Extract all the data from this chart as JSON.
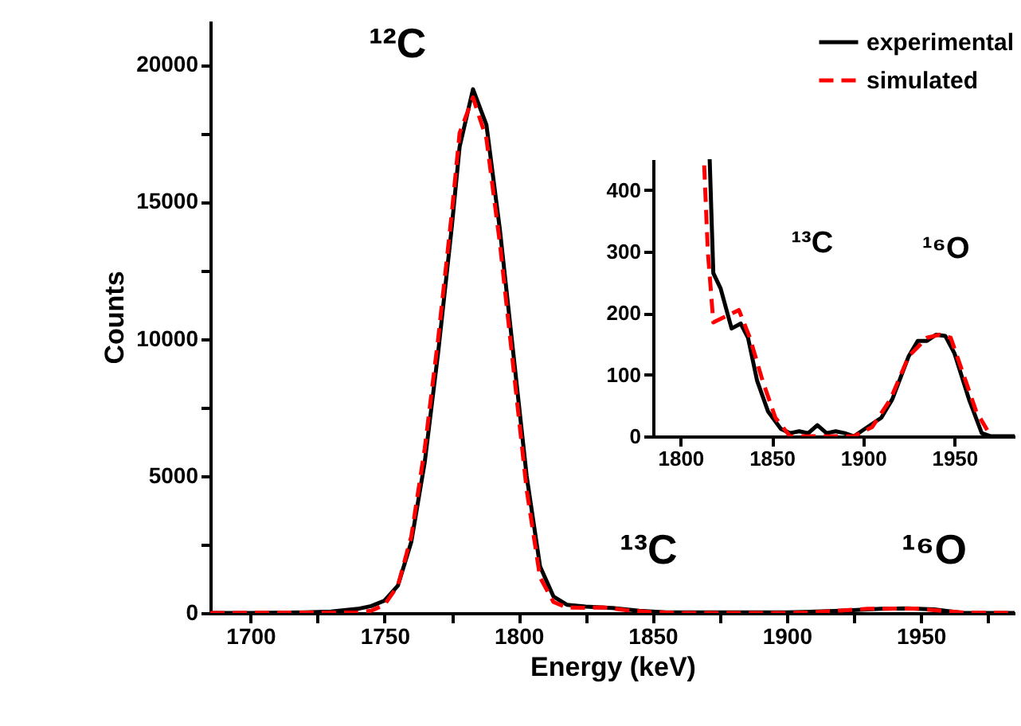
{
  "chart_data": [
    {
      "type": "line",
      "xlabel": "Energy (keV)",
      "ylabel": "Counts",
      "xlim": [
        1685,
        1985
      ],
      "ylim": [
        0,
        21600
      ],
      "xticks": [
        1700,
        {
          "value": 1725,
          "label": null
        },
        1750,
        {
          "value": 1775,
          "label": null
        },
        1800,
        {
          "value": 1825,
          "label": null
        },
        1850,
        {
          "value": 1875,
          "label": null
        },
        1900,
        {
          "value": 1925,
          "label": null
        },
        1950,
        {
          "value": 1975,
          "label": null
        }
      ],
      "yticks": [
        0,
        {
          "value": 2500,
          "label": null
        },
        5000,
        {
          "value": 7500,
          "label": null
        },
        10000,
        {
          "value": 12500,
          "label": null
        },
        15000,
        {
          "value": 17500,
          "label": null
        },
        20000
      ],
      "grid": false,
      "legend": "top right",
      "series": [
        {
          "name": "experimental",
          "color": "#000000",
          "line_style": "solid",
          "x": [
            1685,
            1700,
            1720,
            1730,
            1740,
            1745,
            1750,
            1755,
            1760,
            1765,
            1770,
            1775,
            1778,
            1783,
            1788,
            1793,
            1798,
            1803,
            1808,
            1813,
            1818,
            1825,
            1835,
            1845,
            1855,
            1875,
            1900,
            1920,
            1935,
            1945,
            1955,
            1965,
            1985
          ],
          "values": [
            0,
            0,
            20,
            50,
            150,
            250,
            450,
            1000,
            2600,
            5500,
            9500,
            14000,
            17000,
            19100,
            17800,
            14000,
            9500,
            5000,
            1700,
            600,
            300,
            230,
            180,
            80,
            20,
            20,
            20,
            80,
            150,
            170,
            130,
            10,
            0
          ]
        },
        {
          "name": "simulated",
          "color": "#ff0000",
          "line_style": "dashed",
          "x": [
            1685,
            1740,
            1745,
            1750,
            1755,
            1760,
            1765,
            1770,
            1775,
            1778,
            1783,
            1788,
            1793,
            1798,
            1803,
            1808,
            1813,
            1818,
            1825,
            1832,
            1840,
            1850,
            1860,
            1900,
            1910,
            1920,
            1930,
            1940,
            1948,
            1958,
            1967,
            1985
          ],
          "values": [
            0,
            20,
            80,
            300,
            1000,
            2800,
            6000,
            10000,
            14500,
            17500,
            18800,
            17300,
            13500,
            9000,
            4500,
            1300,
            400,
            200,
            190,
            200,
            100,
            30,
            0,
            0,
            20,
            90,
            150,
            160,
            160,
            80,
            10,
            0
          ]
        }
      ],
      "annotations": [
        "¹²C",
        "¹³C",
        "¹⁶O"
      ]
    },
    {
      "type": "line",
      "xlim": [
        1785,
        1983
      ],
      "ylim": [
        0,
        450
      ],
      "xticks": [
        1800,
        1850,
        1900,
        1950
      ],
      "yticks": [
        0,
        100,
        200,
        300,
        400
      ],
      "grid": false,
      "series": [
        {
          "color": "#000000",
          "line_style": "solid",
          "x": [
            1816,
            1818,
            1822,
            1828,
            1833,
            1837,
            1842,
            1848,
            1855,
            1860,
            1865,
            1870,
            1875,
            1880,
            1885,
            1890,
            1895,
            1900,
            1910,
            1916,
            1925,
            1930,
            1935,
            1940,
            1945,
            1950,
            1958,
            1965,
            1970,
            1983
          ],
          "values": [
            450,
            265,
            240,
            175,
            183,
            160,
            90,
            40,
            12,
            5,
            8,
            5,
            18,
            5,
            8,
            5,
            0,
            10,
            30,
            60,
            130,
            155,
            155,
            165,
            163,
            135,
            60,
            5,
            0,
            0
          ]
        },
        {
          "color": "#ff0000",
          "line_style": "dashed",
          "x": [
            1813,
            1815,
            1818,
            1825,
            1832,
            1838,
            1845,
            1852,
            1860,
            1895,
            1905,
            1915,
            1925,
            1935,
            1942,
            1948,
            1955,
            1962,
            1968
          ],
          "values": [
            440,
            300,
            185,
            195,
            205,
            160,
            90,
            30,
            0,
            0,
            15,
            60,
            130,
            160,
            165,
            160,
            100,
            40,
            10
          ]
        }
      ],
      "annotations": [
        "¹³C",
        "¹⁶O"
      ]
    }
  ]
}
